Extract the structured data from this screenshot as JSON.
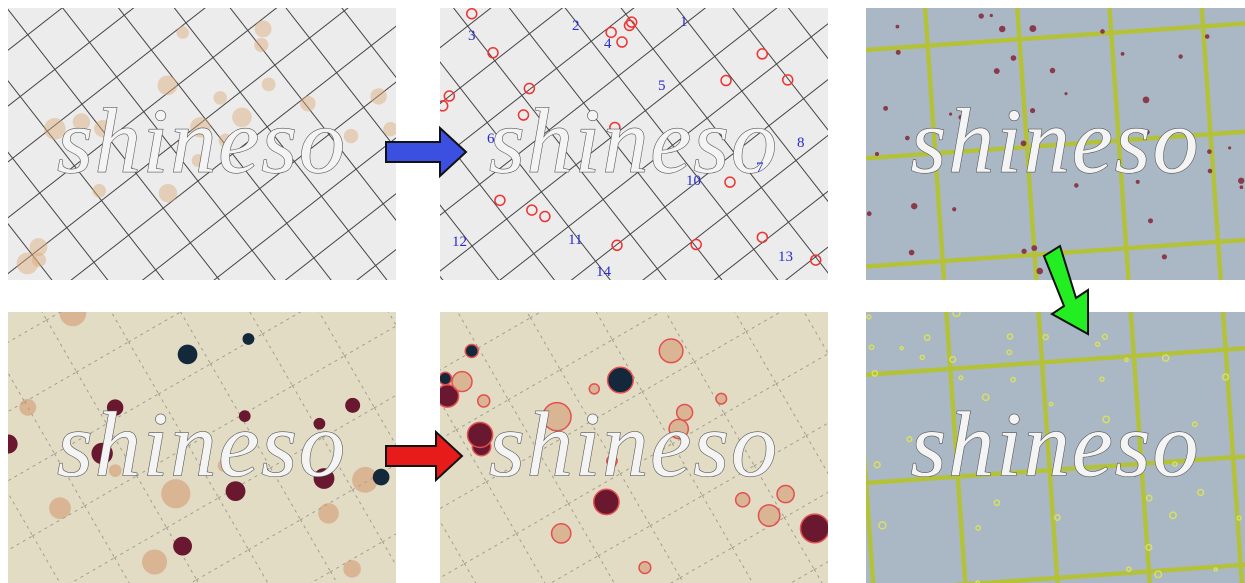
{
  "panels": [
    {
      "watermark": "shineso"
    },
    {
      "watermark": "shineso",
      "colony_labels": [
        "1",
        "2",
        "3",
        "4",
        "5",
        "6",
        "7",
        "8",
        "10",
        "11",
        "12",
        "13",
        "14"
      ]
    },
    {
      "watermark": "shineso"
    },
    {
      "watermark": "shineso"
    },
    {
      "watermark": "shineso"
    },
    {
      "watermark": "shineso"
    }
  ]
}
